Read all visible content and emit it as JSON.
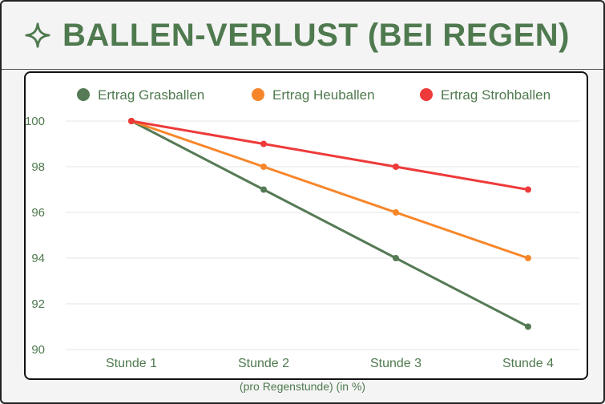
{
  "header": {
    "title": "BALLEN-VERLUST (BEI REGEN)",
    "icon": "sparkle-star-icon"
  },
  "caption": "(pro Regenstunde) (in %)",
  "colors": {
    "title": "#4f7a4f",
    "axis_text": "#4f7a4f",
    "grid": "#e6e6e6"
  },
  "chart_data": {
    "type": "line",
    "categories": [
      "Stunde 1",
      "Stunde 2",
      "Stunde 3",
      "Stunde 4"
    ],
    "series": [
      {
        "name": "Ertrag Grasballen",
        "color": "#557a55",
        "values": [
          100,
          97,
          94,
          91
        ]
      },
      {
        "name": "Ertrag Heuballen",
        "color": "#f7862a",
        "values": [
          100,
          98,
          96,
          94
        ]
      },
      {
        "name": "Ertrag Strohballen",
        "color": "#ee3a3a",
        "values": [
          100,
          99,
          98,
          97
        ]
      }
    ],
    "yticks": [
      90,
      92,
      94,
      96,
      98,
      100
    ],
    "ylim": [
      90,
      100
    ],
    "xlabel": "(pro Regenstunde) (in %)",
    "grid": true,
    "legend_position": "top"
  }
}
